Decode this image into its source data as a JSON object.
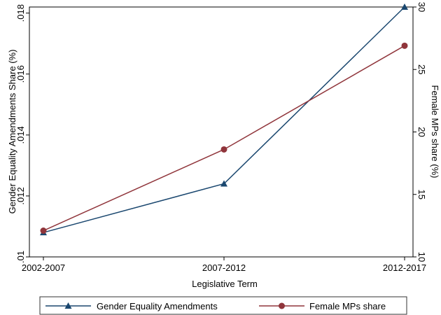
{
  "chart_data": {
    "type": "line",
    "categories": [
      "2002-2007",
      "2007-2012",
      "2012-2017"
    ],
    "xlabel": "Legislative Term",
    "ylabel_left": "Gender Equality Amendments Share (%)",
    "ylabel_right": "Female MPs share (%)",
    "y_left": {
      "range": [
        0.01,
        0.0182
      ],
      "ticks": [
        0.01,
        0.012,
        0.014,
        0.016,
        0.018
      ],
      "tick_labels": [
        ".01",
        ".012",
        ".014",
        ".016",
        ".018"
      ]
    },
    "y_right": {
      "range": [
        10,
        30
      ],
      "ticks": [
        10,
        15,
        20,
        25,
        30
      ],
      "tick_labels": [
        "10",
        "15",
        "20",
        "25",
        "30"
      ]
    },
    "series": [
      {
        "name": "Gender Equality Amendments",
        "axis": "left",
        "values": [
          0.0108,
          0.0124,
          0.0182
        ],
        "color": "#1a476f",
        "marker": "triangle"
      },
      {
        "name": "Female MPs share",
        "axis": "right",
        "values": [
          12.1,
          18.6,
          26.9
        ],
        "color": "#90353b",
        "marker": "circle"
      }
    ],
    "grid": false,
    "legend_position": "bottom"
  }
}
